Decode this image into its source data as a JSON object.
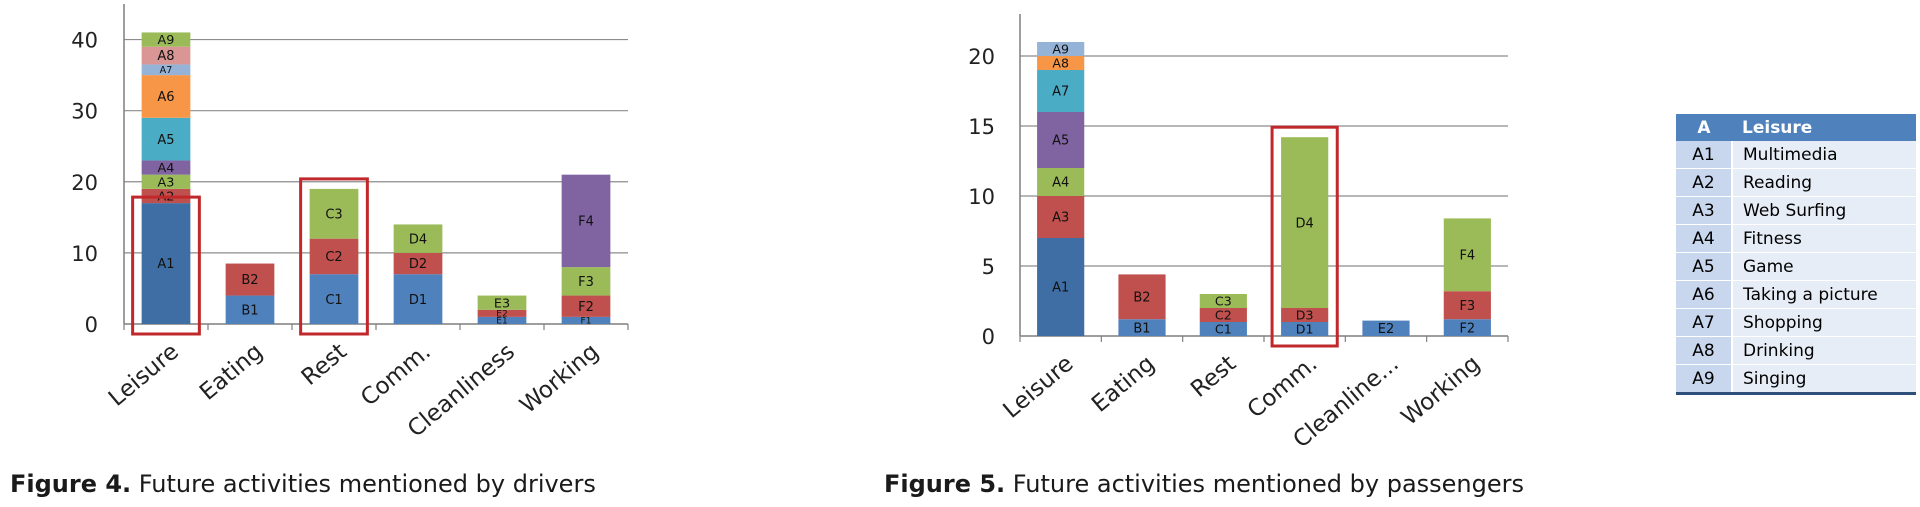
{
  "figures": [
    {
      "caption_label": "Figure 4.",
      "caption_text": " Future activities mentioned by drivers"
    },
    {
      "caption_label": "Figure 5.",
      "caption_text": " Future activities mentioned by passengers"
    }
  ],
  "legend_table": {
    "header": {
      "code": "A",
      "name": "Leisure"
    },
    "rows": [
      {
        "code": "A1",
        "name": "Multimedia"
      },
      {
        "code": "A2",
        "name": "Reading"
      },
      {
        "code": "A3",
        "name": "Web Surfing"
      },
      {
        "code": "A4",
        "name": "Fitness"
      },
      {
        "code": "A5",
        "name": "Game"
      },
      {
        "code": "A6",
        "name": "Taking a picture"
      },
      {
        "code": "A7",
        "name": "Shopping"
      },
      {
        "code": "A8",
        "name": "Drinking"
      },
      {
        "code": "A9",
        "name": "Singing"
      }
    ]
  },
  "colors": {
    "blue": "#4f81bd",
    "red": "#c0504d",
    "green": "#9bbb59",
    "purple": "#8064a2",
    "teal": "#4bacc6",
    "orange": "#f79646",
    "lightblue": "#95b3d7",
    "pink": "#d99694",
    "darkblue": "#3f6ea5",
    "highlight": "#c0282b"
  },
  "chart_data": [
    {
      "type": "bar",
      "stacked": true,
      "categories": [
        "Leisure",
        "Eating",
        "Rest",
        "Comm.",
        "Cleanliness",
        "Working"
      ],
      "ylim": [
        0,
        45
      ],
      "yticks": [
        0,
        10,
        20,
        30,
        40
      ],
      "grid": true,
      "highlighted_categories": [
        "Leisure",
        "Rest"
      ],
      "stacks": [
        [
          {
            "label": "A1",
            "value": 17,
            "color": "darkblue"
          },
          {
            "label": "A2",
            "value": 2,
            "color": "red"
          },
          {
            "label": "A3",
            "value": 2,
            "color": "green"
          },
          {
            "label": "A4",
            "value": 2,
            "color": "purple"
          },
          {
            "label": "A5",
            "value": 6,
            "color": "teal"
          },
          {
            "label": "A6",
            "value": 6,
            "color": "orange"
          },
          {
            "label": "A7",
            "value": 1.5,
            "color": "lightblue"
          },
          {
            "label": "A8",
            "value": 2.5,
            "color": "pink"
          },
          {
            "label": "A9",
            "value": 2,
            "color": "green"
          }
        ],
        [
          {
            "label": "B1",
            "value": 4,
            "color": "blue"
          },
          {
            "label": "B2",
            "value": 4.5,
            "color": "red"
          }
        ],
        [
          {
            "label": "C1",
            "value": 7,
            "color": "blue"
          },
          {
            "label": "C2",
            "value": 5,
            "color": "red"
          },
          {
            "label": "C3",
            "value": 7,
            "color": "green"
          }
        ],
        [
          {
            "label": "D1",
            "value": 7,
            "color": "blue"
          },
          {
            "label": "D2",
            "value": 3,
            "color": "red"
          },
          {
            "label": "D4",
            "value": 4,
            "color": "green"
          }
        ],
        [
          {
            "label": "E1",
            "value": 1,
            "color": "blue"
          },
          {
            "label": "E2",
            "value": 1,
            "color": "red"
          },
          {
            "label": "E3",
            "value": 2,
            "color": "green"
          }
        ],
        [
          {
            "label": "F1",
            "value": 1,
            "color": "blue"
          },
          {
            "label": "F2",
            "value": 3,
            "color": "red"
          },
          {
            "label": "F3",
            "value": 4,
            "color": "green"
          },
          {
            "label": "F4",
            "value": 13,
            "color": "purple"
          }
        ]
      ]
    },
    {
      "type": "bar",
      "stacked": true,
      "categories": [
        "Leisure",
        "Eating",
        "Rest",
        "Comm.",
        "Cleanline...",
        "Working"
      ],
      "ylim": [
        0,
        23
      ],
      "yticks": [
        0,
        5,
        10,
        15,
        20
      ],
      "grid": true,
      "highlighted_categories": [
        "Comm."
      ],
      "stacks": [
        [
          {
            "label": "A1",
            "value": 7,
            "color": "darkblue"
          },
          {
            "label": "A3",
            "value": 3,
            "color": "red"
          },
          {
            "label": "A4",
            "value": 2,
            "color": "green"
          },
          {
            "label": "A5",
            "value": 4,
            "color": "purple"
          },
          {
            "label": "A7",
            "value": 3,
            "color": "teal"
          },
          {
            "label": "A8",
            "value": 1,
            "color": "orange"
          },
          {
            "label": "A9",
            "value": 1,
            "color": "lightblue"
          }
        ],
        [
          {
            "label": "B1",
            "value": 1.2,
            "color": "blue"
          },
          {
            "label": "B2",
            "value": 3.2,
            "color": "red"
          }
        ],
        [
          {
            "label": "C1",
            "value": 1,
            "color": "blue"
          },
          {
            "label": "C2",
            "value": 1,
            "color": "red"
          },
          {
            "label": "C3",
            "value": 1,
            "color": "green"
          }
        ],
        [
          {
            "label": "D1",
            "value": 1,
            "color": "blue"
          },
          {
            "label": "D3",
            "value": 1,
            "color": "red"
          },
          {
            "label": "D4",
            "value": 12.2,
            "color": "green"
          }
        ],
        [
          {
            "label": "E2",
            "value": 1.1,
            "color": "blue"
          }
        ],
        [
          {
            "label": "F2",
            "value": 1.2,
            "color": "blue"
          },
          {
            "label": "F3",
            "value": 2,
            "color": "red"
          },
          {
            "label": "F4",
            "value": 5.2,
            "color": "green"
          }
        ]
      ]
    }
  ]
}
